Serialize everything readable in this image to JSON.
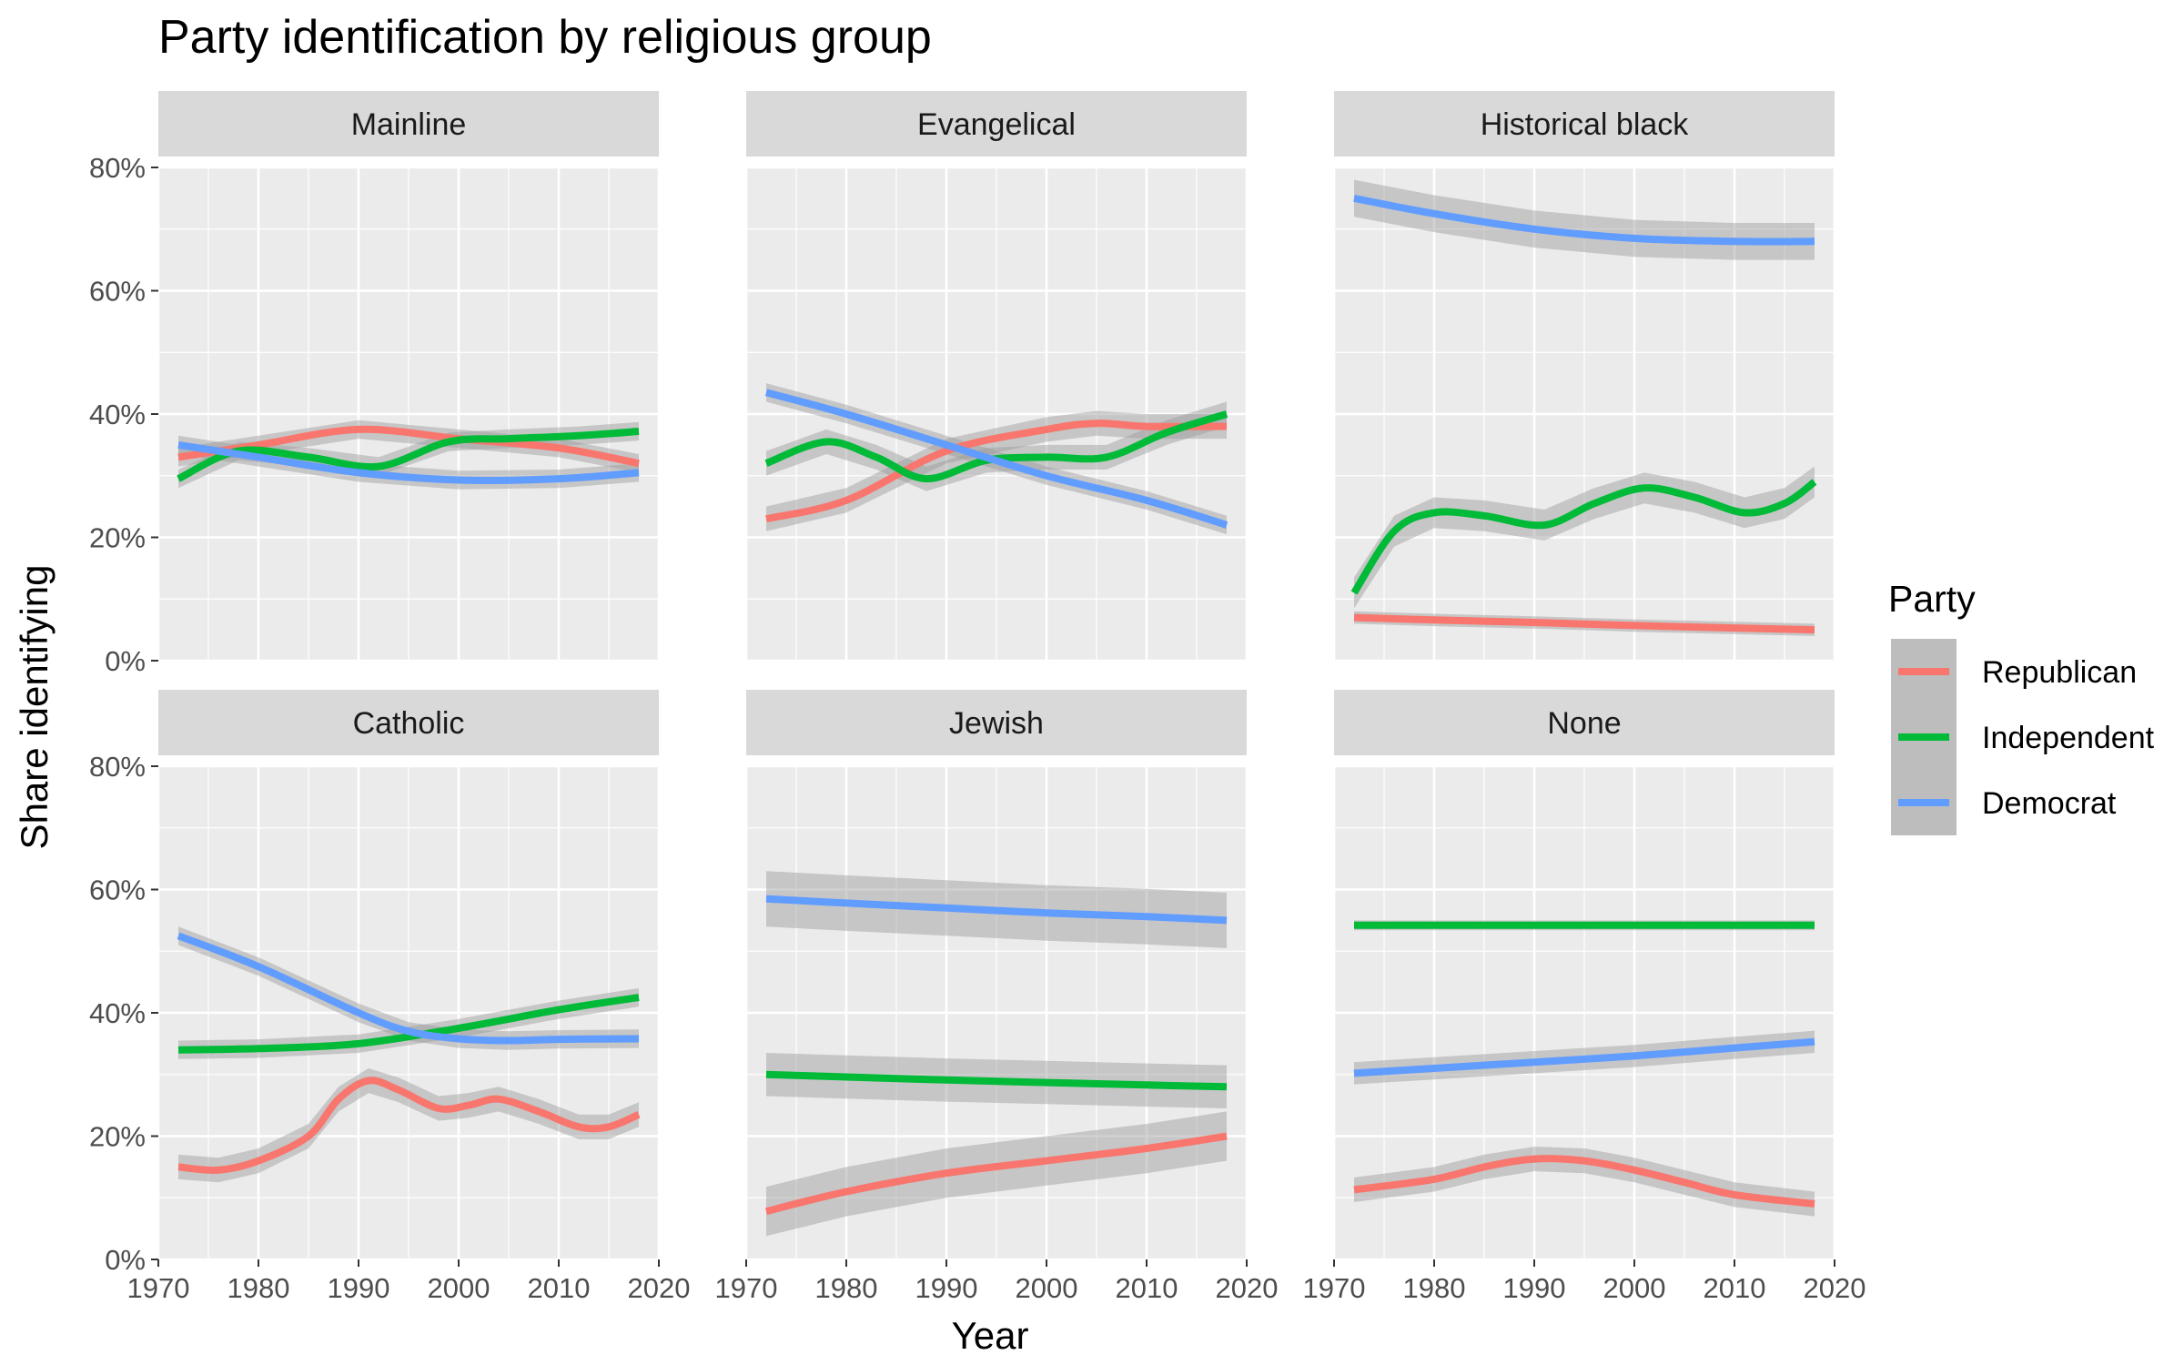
{
  "chart_data": {
    "type": "line",
    "title": "Party identification by religious group",
    "xlabel": "Year",
    "ylabel": "Share identifying",
    "xlim": [
      1970,
      2020
    ],
    "ylim": [
      0,
      0.8
    ],
    "x_ticks": [
      1970,
      1980,
      1990,
      2000,
      2010,
      2020
    ],
    "y_ticks": [
      0,
      0.2,
      0.4,
      0.6,
      0.8
    ],
    "y_tick_labels": [
      "0%",
      "20%",
      "40%",
      "60%",
      "80%"
    ],
    "grid": true,
    "legend": {
      "title": "Party",
      "position": "right",
      "entries": [
        {
          "name": "Republican",
          "color": "#F8766D"
        },
        {
          "name": "Independent",
          "color": "#00BA38"
        },
        {
          "name": "Democrat",
          "color": "#619CFF"
        }
      ]
    },
    "facets": [
      {
        "name": "Mainline",
        "series": [
          {
            "name": "Republican",
            "x": [
              1972,
              1980,
              1990,
              2000,
              2010,
              2018
            ],
            "y": [
              0.33,
              0.35,
              0.375,
              0.36,
              0.345,
              0.32
            ],
            "band": 0.015
          },
          {
            "name": "Independent",
            "x": [
              1972,
              1978,
              1985,
              1992,
              1999,
              2005,
              2012,
              2018
            ],
            "y": [
              0.295,
              0.34,
              0.33,
              0.315,
              0.355,
              0.36,
              0.365,
              0.372
            ],
            "band": 0.015
          },
          {
            "name": "Democrat",
            "x": [
              1972,
              1980,
              1990,
              2000,
              2010,
              2018
            ],
            "y": [
              0.35,
              0.33,
              0.305,
              0.293,
              0.295,
              0.305
            ],
            "band": 0.015
          }
        ]
      },
      {
        "name": "Evangelical",
        "series": [
          {
            "name": "Republican",
            "x": [
              1972,
              1980,
              1990,
              2000,
              2005,
              2010,
              2018
            ],
            "y": [
              0.23,
              0.26,
              0.34,
              0.375,
              0.385,
              0.38,
              0.38
            ],
            "band": 0.02
          },
          {
            "name": "Independent",
            "x": [
              1972,
              1978,
              1983,
              1988,
              1994,
              2000,
              2006,
              2012,
              2018
            ],
            "y": [
              0.32,
              0.355,
              0.33,
              0.295,
              0.325,
              0.33,
              0.33,
              0.37,
              0.4
            ],
            "band": 0.02
          },
          {
            "name": "Democrat",
            "x": [
              1972,
              1980,
              1990,
              2000,
              2010,
              2018
            ],
            "y": [
              0.435,
              0.4,
              0.35,
              0.3,
              0.26,
              0.22
            ],
            "band": 0.015
          }
        ]
      },
      {
        "name": "Historical black",
        "series": [
          {
            "name": "Republican",
            "x": [
              1972,
              1980,
              1990,
              2000,
              2010,
              2018
            ],
            "y": [
              0.07,
              0.066,
              0.062,
              0.057,
              0.053,
              0.05
            ],
            "band": 0.01
          },
          {
            "name": "Independent",
            "x": [
              1972,
              1976,
              1980,
              1985,
              1991,
              1996,
              2001,
              2006,
              2011,
              2015,
              2018
            ],
            "y": [
              0.11,
              0.21,
              0.24,
              0.235,
              0.22,
              0.255,
              0.28,
              0.265,
              0.24,
              0.255,
              0.29
            ],
            "band": 0.025
          },
          {
            "name": "Democrat",
            "x": [
              1972,
              1980,
              1990,
              2000,
              2010,
              2018
            ],
            "y": [
              0.75,
              0.725,
              0.7,
              0.685,
              0.68,
              0.68
            ],
            "band": 0.03
          }
        ]
      },
      {
        "name": "Catholic",
        "series": [
          {
            "name": "Republican",
            "x": [
              1972,
              1976,
              1980,
              1985,
              1988,
              1991,
              1994,
              1998,
              2001,
              2004,
              2008,
              2012,
              2015,
              2018
            ],
            "y": [
              0.15,
              0.145,
              0.16,
              0.2,
              0.26,
              0.29,
              0.275,
              0.245,
              0.25,
              0.26,
              0.24,
              0.215,
              0.215,
              0.235
            ],
            "band": 0.02
          },
          {
            "name": "Independent",
            "x": [
              1972,
              1980,
              1990,
              2000,
              2010,
              2018
            ],
            "y": [
              0.34,
              0.342,
              0.35,
              0.375,
              0.405,
              0.425
            ],
            "band": 0.015
          },
          {
            "name": "Democrat",
            "x": [
              1972,
              1980,
              1990,
              1995,
              2000,
              2005,
              2010,
              2018
            ],
            "y": [
              0.525,
              0.475,
              0.4,
              0.37,
              0.358,
              0.355,
              0.357,
              0.358
            ],
            "band": 0.015
          }
        ]
      },
      {
        "name": "Jewish",
        "series": [
          {
            "name": "Republican",
            "x": [
              1972,
              1980,
              1990,
              2000,
              2010,
              2018
            ],
            "y": [
              0.078,
              0.11,
              0.14,
              0.16,
              0.18,
              0.2
            ],
            "band": 0.04
          },
          {
            "name": "Independent",
            "x": [
              1972,
              1980,
              1990,
              2000,
              2010,
              2018
            ],
            "y": [
              0.3,
              0.296,
              0.291,
              0.287,
              0.283,
              0.28
            ],
            "band": 0.035
          },
          {
            "name": "Democrat",
            "x": [
              1972,
              1980,
              1990,
              2000,
              2010,
              2018
            ],
            "y": [
              0.585,
              0.578,
              0.57,
              0.562,
              0.556,
              0.55
            ],
            "band": 0.045
          }
        ]
      },
      {
        "name": "None",
        "series": [
          {
            "name": "Republican",
            "x": [
              1972,
              1980,
              1985,
              1990,
              1995,
              2000,
              2005,
              2010,
              2018
            ],
            "y": [
              0.113,
              0.13,
              0.15,
              0.163,
              0.16,
              0.145,
              0.125,
              0.105,
              0.09
            ],
            "band": 0.02
          },
          {
            "name": "Independent",
            "x": [
              1972,
              1980,
              1990,
              2000,
              2010,
              2018
            ],
            "y": [
              0.542,
              0.542,
              0.542,
              0.542,
              0.542,
              0.542
            ],
            "band": 0.008
          },
          {
            "name": "Democrat",
            "x": [
              1972,
              1980,
              1990,
              2000,
              2010,
              2018
            ],
            "y": [
              0.302,
              0.31,
              0.32,
              0.33,
              0.343,
              0.353
            ],
            "band": 0.018
          }
        ]
      }
    ]
  }
}
